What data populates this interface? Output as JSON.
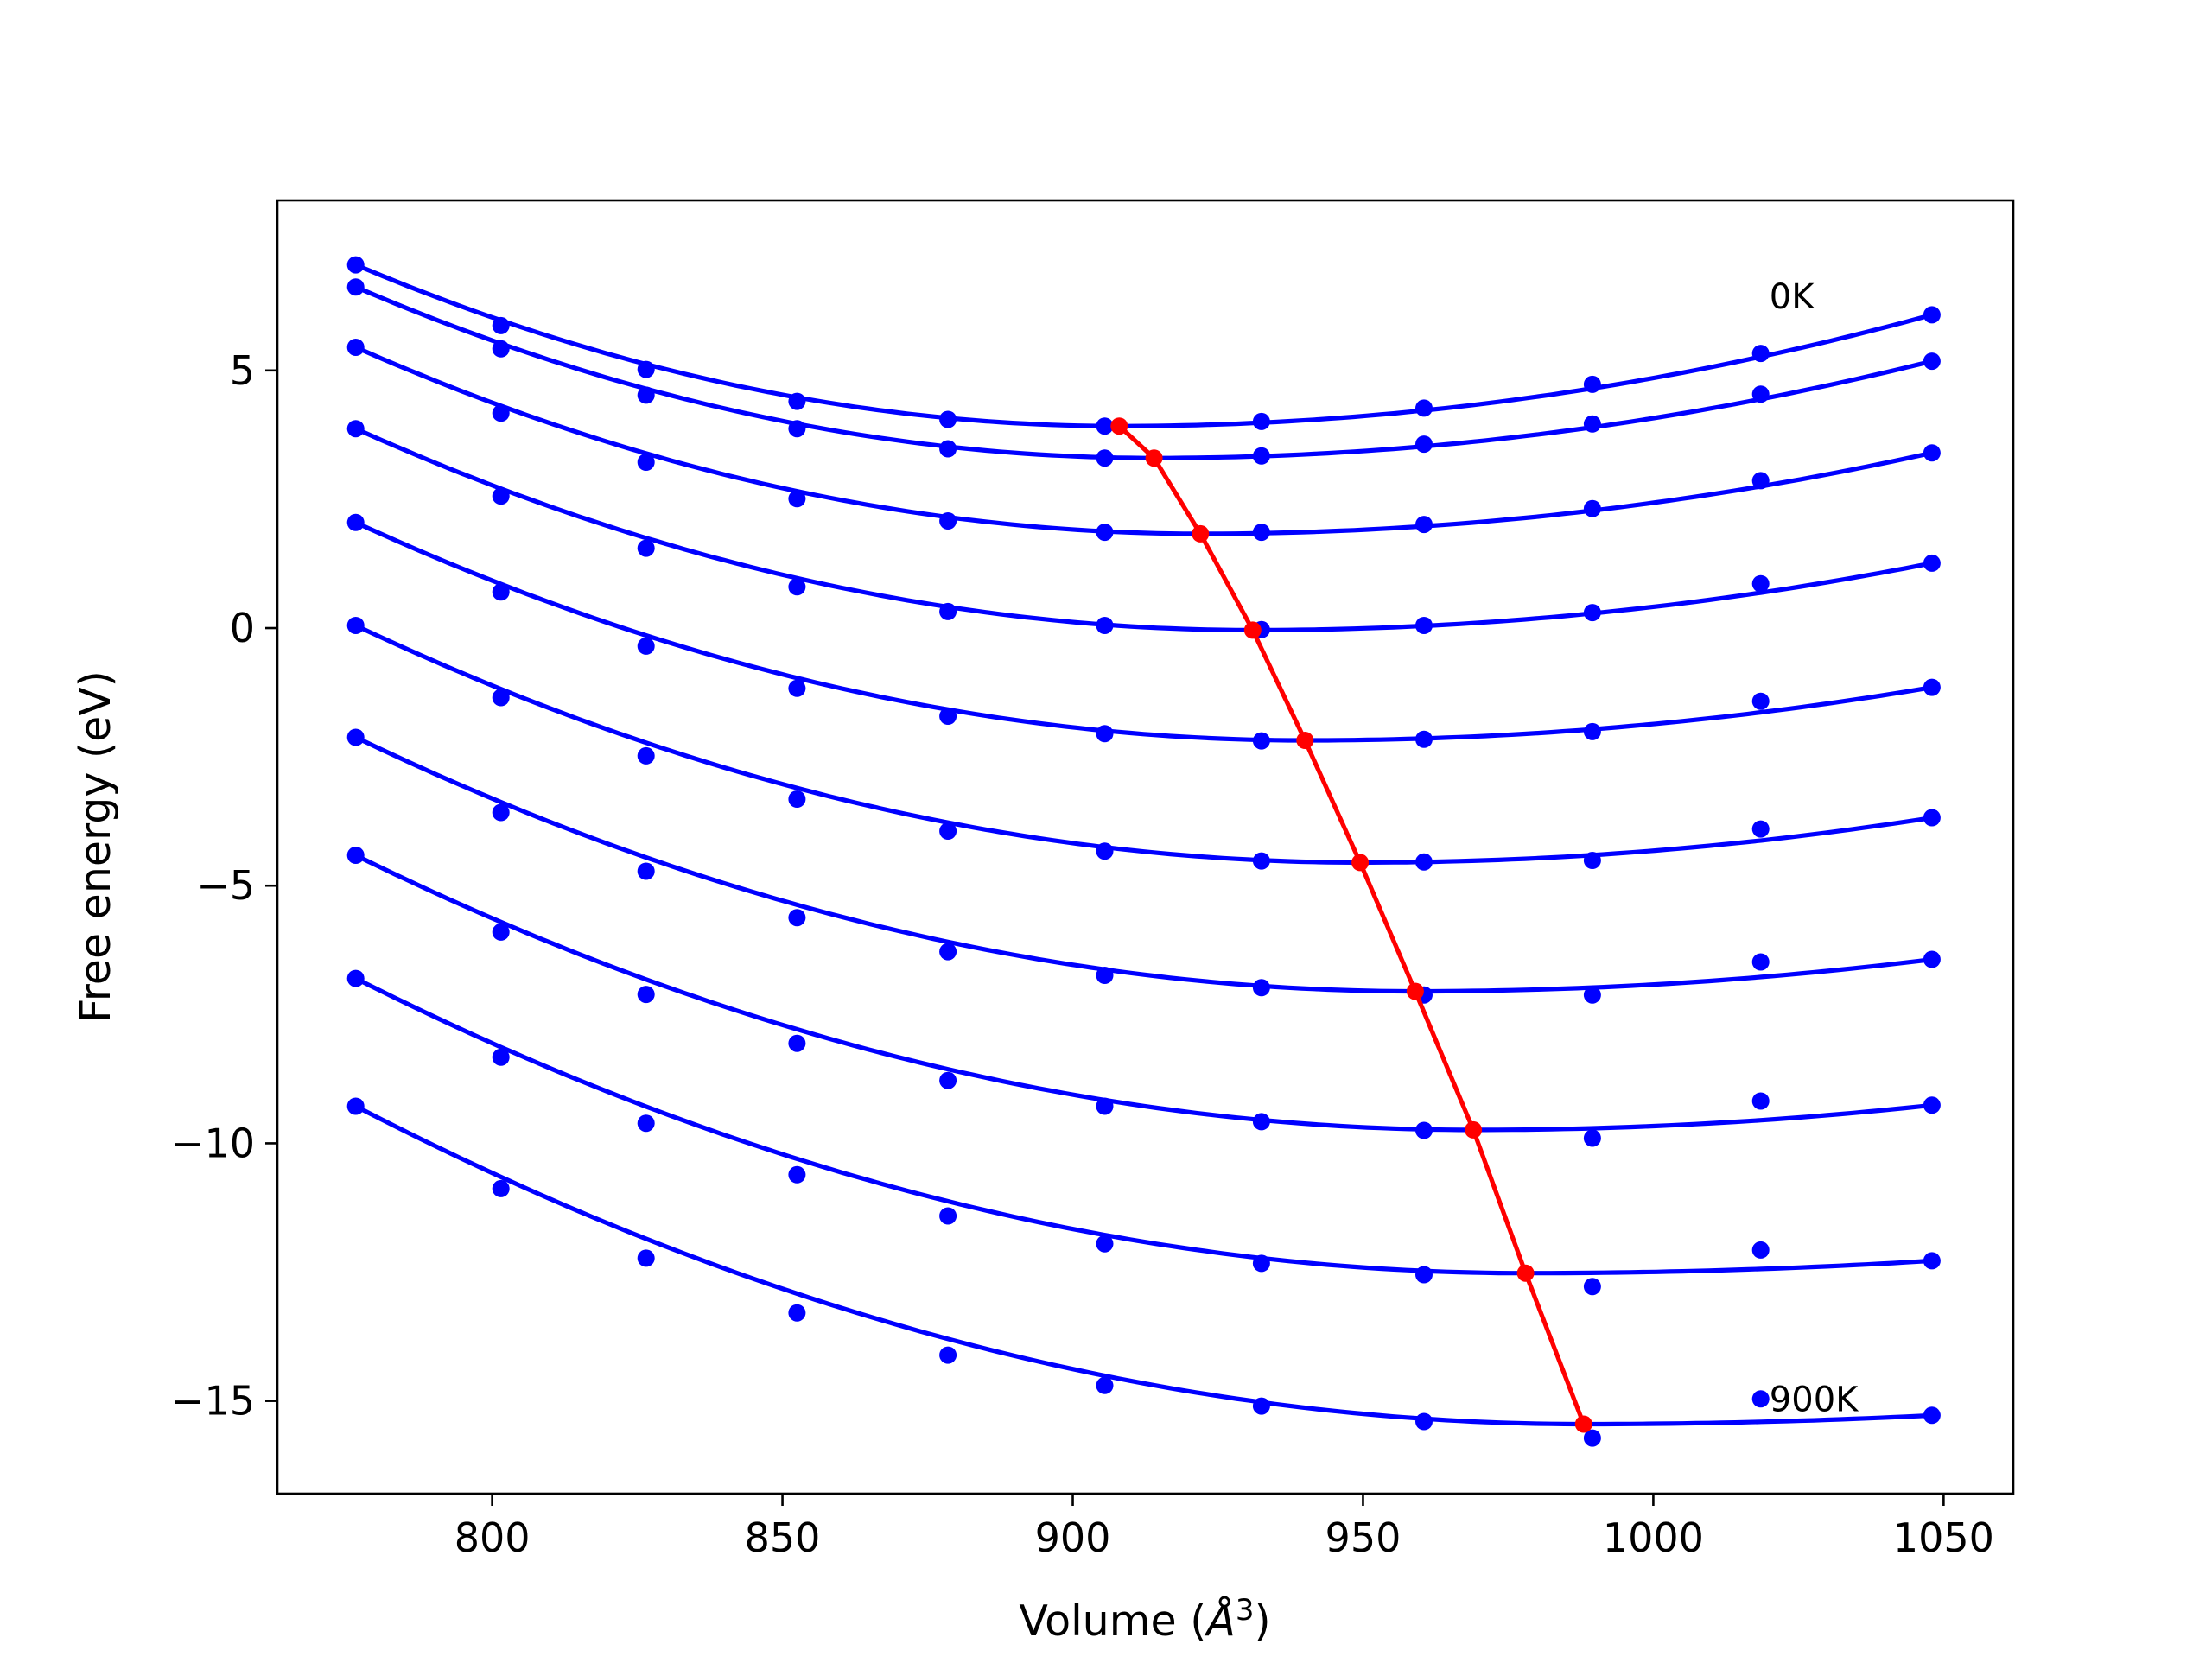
{
  "chart_data": {
    "type": "line",
    "title": "",
    "xlabel": "Volume (Å³)",
    "xlabel_parts": {
      "prefix": "Volume (",
      "unit": "Å",
      "exponent": "3",
      "suffix": ")"
    },
    "ylabel": "Free energy (eV)",
    "xlim": [
      763,
      1062
    ],
    "ylim": [
      -16.8,
      8.3
    ],
    "xticks": [
      800,
      850,
      900,
      950,
      1000,
      1050
    ],
    "xtick_labels": [
      "800",
      "850",
      "900",
      "950",
      "1000",
      "1050"
    ],
    "yticks": [
      5,
      0,
      -5,
      -10,
      -15
    ],
    "ytick_labels": [
      "5",
      "0",
      "−5",
      "−10",
      "−15"
    ],
    "grid": false,
    "colors": {
      "series": "#0000ff",
      "minimum_path": "#ff0000",
      "axes": "#000000"
    },
    "annotations": [
      {
        "text": "0K",
        "x": 1020,
        "y": 6.2
      },
      {
        "text": "900K",
        "x": 1020,
        "y": -15.2
      }
    ],
    "x": [
      776.5,
      801.5,
      826.5,
      852.5,
      878.5,
      905.5,
      932.5,
      960.5,
      989.5,
      1018.5,
      1048.0
    ],
    "series": [
      {
        "points": [
          7.05,
          5.87,
          5.02,
          4.4,
          4.05,
          3.92,
          4.01,
          4.27,
          4.73,
          5.33,
          6.08
        ],
        "fit": {
          "min_x": 908.0,
          "min_y": 3.92,
          "left_y": 7.05,
          "right_y": 6.08
        }
      },
      {
        "points": [
          6.62,
          5.42,
          4.52,
          3.87,
          3.48,
          3.3,
          3.34,
          3.57,
          3.96,
          4.54,
          5.18
        ],
        "fit": {
          "min_x": 914.0,
          "min_y": 3.3,
          "left_y": 6.62,
          "right_y": 5.18
        }
      },
      {
        "points": [
          5.45,
          4.17,
          3.22,
          2.51,
          2.08,
          1.86,
          1.86,
          2.01,
          2.32,
          2.86,
          3.4
        ],
        "fit": {
          "min_x": 922.0,
          "min_y": 1.83,
          "left_y": 5.45,
          "right_y": 3.4
        }
      },
      {
        "points": [
          3.87,
          2.56,
          1.55,
          0.8,
          0.32,
          0.05,
          -0.03,
          0.05,
          0.3,
          0.86,
          1.26
        ],
        "fit": {
          "min_x": 931.0,
          "min_y": -0.04,
          "left_y": 3.87,
          "right_y": 1.26
        }
      },
      {
        "points": [
          2.05,
          0.7,
          -0.35,
          -1.17,
          -1.71,
          -2.05,
          -2.19,
          -2.16,
          -2.01,
          -1.42,
          -1.15
        ],
        "fit": {
          "min_x": 940.0,
          "min_y": -2.18,
          "left_y": 2.05,
          "right_y": -1.15
        }
      },
      {
        "points": [
          0.05,
          -1.35,
          -2.48,
          -3.32,
          -3.94,
          -4.33,
          -4.52,
          -4.54,
          -4.51,
          -3.9,
          -3.68
        ],
        "fit": {
          "min_x": 949.5,
          "min_y": -4.55,
          "left_y": 0.05,
          "right_y": -3.68
        }
      },
      {
        "points": [
          -2.12,
          -3.58,
          -4.72,
          -5.62,
          -6.28,
          -6.74,
          -6.98,
          -7.12,
          -7.12,
          -6.48,
          -6.43
        ],
        "fit": {
          "min_x": 959.0,
          "min_y": -7.05,
          "left_y": -2.12,
          "right_y": -6.43
        }
      },
      {
        "points": [
          -4.41,
          -5.9,
          -7.11,
          -8.06,
          -8.78,
          -9.28,
          -9.58,
          -9.75,
          -9.9,
          -9.18,
          -9.26
        ],
        "fit": {
          "min_x": 969.0,
          "min_y": -9.74,
          "left_y": -4.41,
          "right_y": -9.26
        }
      },
      {
        "points": [
          -6.8,
          -8.33,
          -9.61,
          -10.61,
          -11.41,
          -11.95,
          -12.33,
          -12.55,
          -12.78,
          -12.07,
          -12.28
        ],
        "fit": {
          "min_x": 978.0,
          "min_y": -12.52,
          "left_y": -6.8,
          "right_y": -12.28
        }
      },
      {
        "points": [
          -9.28,
          -10.88,
          -12.23,
          -13.29,
          -14.11,
          -14.7,
          -15.1,
          -15.4,
          -15.72,
          -14.96,
          -15.28
        ],
        "fit": {
          "min_x": 988.0,
          "min_y": -15.45,
          "left_y": -9.28,
          "right_y": -15.28
        }
      }
    ],
    "minimum_path": {
      "x": [
        908.0,
        914.0,
        922.0,
        931.0,
        940.0,
        949.5,
        959.0,
        969.0,
        978.0,
        988.0
      ],
      "y": [
        3.92,
        3.3,
        1.83,
        -0.04,
        -2.18,
        -4.55,
        -7.05,
        -9.74,
        -12.52,
        -15.45
      ]
    }
  }
}
